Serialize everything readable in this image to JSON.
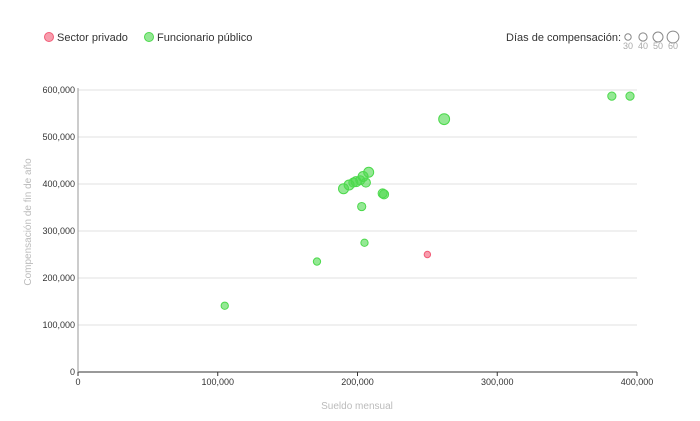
{
  "chart_data": {
    "type": "scatter",
    "xlabel": "Sueldo mensual",
    "ylabel": "Compensación de fin de año",
    "xlim": [
      0,
      400000
    ],
    "ylim": [
      0,
      600000
    ],
    "x_ticks": [
      "0",
      "100,000",
      "200,000",
      "300,000",
      "400,000"
    ],
    "y_ticks": [
      "0",
      "100,000",
      "200,000",
      "300,000",
      "400,000",
      "500,000",
      "600,000"
    ],
    "grid": "horizontal",
    "legend_position": "top-left",
    "size_legend": {
      "title": "Días de compensación:",
      "values": [
        30,
        40,
        50,
        60
      ],
      "labels": [
        "30",
        "40",
        "50",
        "60"
      ]
    },
    "series": [
      {
        "name": "Sector privado",
        "color": "#f25c77",
        "points": [
          {
            "x": 250000,
            "y": 250000,
            "days": 30
          }
        ]
      },
      {
        "name": "Funcionario público",
        "color": "#4cd94c",
        "points": [
          {
            "x": 105000,
            "y": 141000,
            "days": 35
          },
          {
            "x": 171000,
            "y": 235000,
            "days": 35
          },
          {
            "x": 190000,
            "y": 390000,
            "days": 50
          },
          {
            "x": 194000,
            "y": 398000,
            "days": 50
          },
          {
            "x": 197000,
            "y": 403000,
            "days": 45
          },
          {
            "x": 199000,
            "y": 405000,
            "days": 50
          },
          {
            "x": 202000,
            "y": 408000,
            "days": 45
          },
          {
            "x": 204000,
            "y": 416000,
            "days": 50
          },
          {
            "x": 206000,
            "y": 403000,
            "days": 45
          },
          {
            "x": 208000,
            "y": 425000,
            "days": 50
          },
          {
            "x": 203000,
            "y": 352000,
            "days": 40
          },
          {
            "x": 205000,
            "y": 275000,
            "days": 35
          },
          {
            "x": 218000,
            "y": 380000,
            "days": 45
          },
          {
            "x": 219000,
            "y": 378000,
            "days": 45
          },
          {
            "x": 262000,
            "y": 538000,
            "days": 55
          },
          {
            "x": 382000,
            "y": 587000,
            "days": 40
          },
          {
            "x": 395000,
            "y": 587000,
            "days": 40
          }
        ]
      }
    ]
  }
}
